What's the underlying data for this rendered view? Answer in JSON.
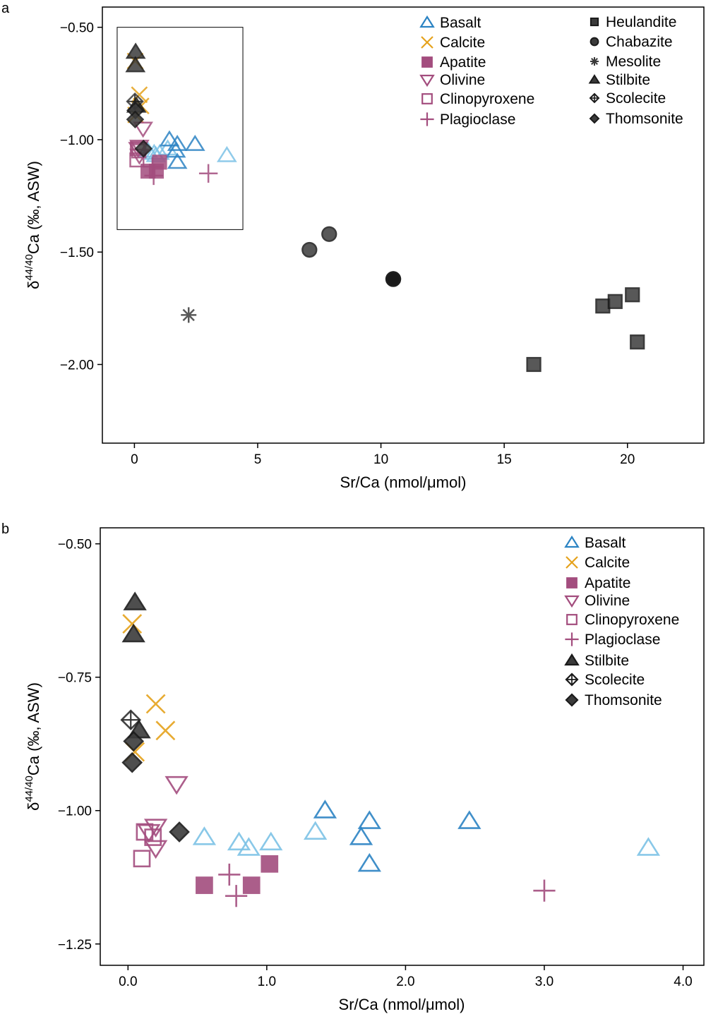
{
  "colors": {
    "basalt": "#2b83c3",
    "basalt_light": "#7cc2e6",
    "calcite": "#e5a21c",
    "apatite": "#a34d7e",
    "apatite_dark": "#8a2f63",
    "olivine": "#a34d7e",
    "clinopyroxene": "#a34d7e",
    "plagioclase": "#a34d7e",
    "zeolite": "#3b3b3b",
    "zeolite_black": "#151515"
  },
  "chart_data": [
    {
      "panel": "a",
      "type": "scatter",
      "xlabel": "Sr/Ca (nmol/μmol)",
      "ylabel_parts": [
        "δ",
        "44/40",
        "Ca (‰, ASW)"
      ],
      "xlim": [
        -1.3,
        23.1
      ],
      "ylim": [
        -2.35,
        -0.41
      ],
      "xticks": [
        0,
        5,
        10,
        15,
        20
      ],
      "xtick_labels": [
        "0",
        "5",
        "10",
        "15",
        "20"
      ],
      "yticks": [
        -0.5,
        -1.0,
        -1.5,
        -2.0
      ],
      "ytick_labels": [
        "−0.50",
        "−1.00",
        "−1.50",
        "−2.00"
      ],
      "inset_box": {
        "x": [
          -0.7,
          4.4
        ],
        "y": [
          -1.4,
          -0.5
        ]
      },
      "legend_left": [
        "Basalt",
        "Calcite",
        "Apatite",
        "Olivine",
        "Clinopyroxene",
        "Plagioclase"
      ],
      "legend_right": [
        "Heulandite",
        "Chabazite",
        "Mesolite",
        "Stilbite",
        "Scolecite",
        "Thomsonite"
      ],
      "series": [
        {
          "name": "Basalt",
          "marker": "triangle",
          "points": [
            [
              0.55,
              -1.05
            ],
            [
              0.8,
              -1.06
            ],
            [
              0.87,
              -1.07
            ],
            [
              1.03,
              -1.06
            ],
            [
              1.35,
              -1.04
            ],
            [
              1.42,
              -1.0
            ],
            [
              1.68,
              -1.05
            ],
            [
              1.74,
              -1.02
            ],
            [
              1.74,
              -1.1
            ],
            [
              2.46,
              -1.02
            ],
            [
              3.75,
              -1.07
            ]
          ]
        },
        {
          "name": "Calcite",
          "marker": "cross",
          "points": [
            [
              0.03,
              -0.65
            ],
            [
              0.2,
              -0.8
            ],
            [
              0.27,
              -0.85
            ],
            [
              0.05,
              -0.89
            ]
          ]
        },
        {
          "name": "Apatite",
          "marker": "square-filled",
          "points": [
            [
              0.55,
              -1.14
            ],
            [
              0.89,
              -1.14
            ],
            [
              1.02,
              -1.1
            ]
          ]
        },
        {
          "name": "Olivine",
          "marker": "triangle-down",
          "points": [
            [
              0.35,
              -0.95
            ],
            [
              0.2,
              -1.03
            ],
            [
              0.15,
              -1.04
            ],
            [
              0.2,
              -1.07
            ]
          ]
        },
        {
          "name": "Clinopyroxene",
          "marker": "square-open",
          "points": [
            [
              0.12,
              -1.04
            ],
            [
              0.18,
              -1.05
            ],
            [
              0.1,
              -1.09
            ]
          ]
        },
        {
          "name": "Plagioclase",
          "marker": "plus",
          "points": [
            [
              0.73,
              -1.12
            ],
            [
              0.78,
              -1.16
            ],
            [
              3.0,
              -1.15
            ]
          ]
        },
        {
          "name": "Heulandite",
          "marker": "square-dark",
          "points": [
            [
              16.2,
              -2.0
            ],
            [
              19.0,
              -1.74
            ],
            [
              19.5,
              -1.72
            ],
            [
              20.2,
              -1.69
            ],
            [
              20.4,
              -1.9
            ]
          ]
        },
        {
          "name": "Chabazite",
          "marker": "circle-dark",
          "points": [
            [
              7.1,
              -1.49
            ],
            [
              7.9,
              -1.42
            ],
            [
              10.5,
              -1.62
            ],
            [
              10.5,
              -1.62
            ]
          ]
        },
        {
          "name": "Mesolite",
          "marker": "asterisk",
          "points": [
            [
              2.2,
              -1.78
            ]
          ]
        },
        {
          "name": "Stilbite",
          "marker": "triangle-dark",
          "points": [
            [
              0.05,
              -0.61
            ],
            [
              0.04,
              -0.67
            ],
            [
              0.08,
              -0.85
            ]
          ]
        },
        {
          "name": "Scolecite",
          "marker": "diamond-open",
          "points": [
            [
              0.02,
              -0.83
            ]
          ]
        },
        {
          "name": "Thomsonite",
          "marker": "diamond-dark",
          "points": [
            [
              0.04,
              -0.87
            ],
            [
              0.03,
              -0.91
            ],
            [
              0.37,
              -1.04
            ]
          ]
        }
      ]
    },
    {
      "panel": "b",
      "type": "scatter",
      "xlabel": "Sr/Ca (nmol/μmol)",
      "ylabel_parts": [
        "δ",
        "44/40",
        "Ca (‰, ASW)"
      ],
      "xlim": [
        -0.2,
        4.15
      ],
      "ylim": [
        -1.29,
        -0.47
      ],
      "xticks": [
        0,
        1,
        2,
        3,
        4
      ],
      "xtick_labels": [
        "0.0",
        "1.0",
        "2.0",
        "3.0",
        "4.0"
      ],
      "yticks": [
        -0.5,
        -0.75,
        -1.0,
        -1.25
      ],
      "ytick_labels": [
        "−0.50",
        "−0.75",
        "−1.00",
        "−1.25"
      ],
      "legend": [
        "Basalt",
        "Calcite",
        "Apatite",
        "Olivine",
        "Clinopyroxene",
        "Plagioclase",
        "Stilbite",
        "Scolecite",
        "Thomsonite"
      ],
      "series": [
        {
          "name": "Basalt",
          "marker": "triangle",
          "points": [
            [
              0.55,
              -1.05
            ],
            [
              0.8,
              -1.06
            ],
            [
              0.87,
              -1.07
            ],
            [
              1.03,
              -1.06
            ],
            [
              1.35,
              -1.04
            ],
            [
              1.42,
              -1.0
            ],
            [
              1.68,
              -1.05
            ],
            [
              1.74,
              -1.02
            ],
            [
              1.74,
              -1.1
            ],
            [
              2.46,
              -1.02
            ],
            [
              3.75,
              -1.07
            ]
          ]
        },
        {
          "name": "Calcite",
          "marker": "cross",
          "points": [
            [
              0.03,
              -0.65
            ],
            [
              0.2,
              -0.8
            ],
            [
              0.27,
              -0.85
            ],
            [
              0.05,
              -0.89
            ]
          ]
        },
        {
          "name": "Apatite",
          "marker": "square-filled",
          "points": [
            [
              0.55,
              -1.14
            ],
            [
              0.89,
              -1.14
            ],
            [
              1.02,
              -1.1
            ]
          ]
        },
        {
          "name": "Olivine",
          "marker": "triangle-down",
          "points": [
            [
              0.35,
              -0.95
            ],
            [
              0.2,
              -1.03
            ],
            [
              0.15,
              -1.04
            ],
            [
              0.2,
              -1.07
            ]
          ]
        },
        {
          "name": "Clinopyroxene",
          "marker": "square-open",
          "points": [
            [
              0.12,
              -1.04
            ],
            [
              0.18,
              -1.05
            ],
            [
              0.1,
              -1.09
            ]
          ]
        },
        {
          "name": "Plagioclase",
          "marker": "plus",
          "points": [
            [
              0.73,
              -1.12
            ],
            [
              0.78,
              -1.16
            ],
            [
              3.0,
              -1.15
            ]
          ]
        },
        {
          "name": "Stilbite",
          "marker": "triangle-dark",
          "points": [
            [
              0.05,
              -0.61
            ],
            [
              0.04,
              -0.67
            ],
            [
              0.08,
              -0.85
            ]
          ]
        },
        {
          "name": "Scolecite",
          "marker": "diamond-open",
          "points": [
            [
              0.02,
              -0.83
            ]
          ]
        },
        {
          "name": "Thomsonite",
          "marker": "diamond-dark",
          "points": [
            [
              0.04,
              -0.87
            ],
            [
              0.03,
              -0.91
            ],
            [
              0.37,
              -1.04
            ]
          ]
        }
      ]
    }
  ]
}
